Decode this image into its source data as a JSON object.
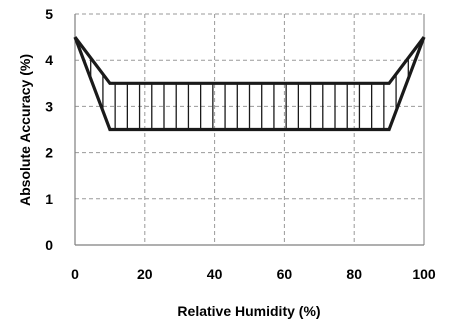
{
  "chart_data": {
    "type": "area",
    "xlabel": "Relative Humidity (%)",
    "ylabel": "Absolute Accuracy  (%)",
    "xlim": [
      0,
      100
    ],
    "ylim": [
      0,
      5
    ],
    "x_ticks": [
      "0",
      "20",
      "40",
      "60",
      "80",
      "100"
    ],
    "y_ticks": [
      "0",
      "1",
      "2",
      "3",
      "4",
      "5"
    ],
    "grid": true,
    "grid_style": "dashed",
    "series": [
      {
        "role": "upper",
        "x": [
          0,
          10,
          90,
          100
        ],
        "values": [
          4.5,
          3.5,
          3.5,
          4.5
        ]
      },
      {
        "role": "lower",
        "x": [
          0,
          10,
          90,
          100
        ],
        "values": [
          4.5,
          2.5,
          2.5,
          4.5
        ]
      }
    ],
    "fill_pattern": "vertical-hatch",
    "colors": {
      "line": "#1a1a1a",
      "grid": "#9a9a9a",
      "axis": "#7f7f7f"
    }
  }
}
